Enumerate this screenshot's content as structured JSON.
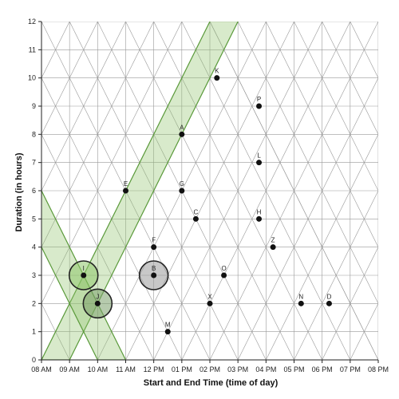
{
  "chart_data": {
    "type": "scatter",
    "xlabel": "Start and End Time (time of day)",
    "ylabel": "Duration (in hours)",
    "x_ticks": [
      "08 AM",
      "09 AM",
      "10 AM",
      "11 AM",
      "12 PM",
      "01 PM",
      "02 PM",
      "03 PM",
      "04 PM",
      "05 PM",
      "06 PM",
      "07 PM",
      "08 PM"
    ],
    "y_ticks": [
      "0",
      "1",
      "2",
      "3",
      "4",
      "5",
      "6",
      "7",
      "8",
      "9",
      "10",
      "11",
      "12"
    ],
    "xlim_hours": [
      8,
      20
    ],
    "ylim": [
      0,
      12
    ],
    "grid": "triangular",
    "points": [
      {
        "label": "K",
        "midpoint": 14.25,
        "duration": 10.0
      },
      {
        "label": "P",
        "midpoint": 15.75,
        "duration": 9.0
      },
      {
        "label": "A",
        "midpoint": 13.0,
        "duration": 8.0
      },
      {
        "label": "L",
        "midpoint": 15.75,
        "duration": 7.0
      },
      {
        "label": "E",
        "midpoint": 11.0,
        "duration": 6.0
      },
      {
        "label": "G",
        "midpoint": 13.0,
        "duration": 6.0
      },
      {
        "label": "C",
        "midpoint": 13.5,
        "duration": 5.0
      },
      {
        "label": "H",
        "midpoint": 15.75,
        "duration": 5.0
      },
      {
        "label": "F",
        "midpoint": 12.0,
        "duration": 4.0
      },
      {
        "label": "Z",
        "midpoint": 16.25,
        "duration": 4.0
      },
      {
        "label": "I",
        "midpoint": 9.5,
        "duration": 3.0
      },
      {
        "label": "B",
        "midpoint": 12.0,
        "duration": 3.0
      },
      {
        "label": "O",
        "midpoint": 14.5,
        "duration": 3.0
      },
      {
        "label": "J",
        "midpoint": 10.0,
        "duration": 2.0
      },
      {
        "label": "X",
        "midpoint": 14.0,
        "duration": 2.0
      },
      {
        "label": "N",
        "midpoint": 17.25,
        "duration": 2.0
      },
      {
        "label": "D",
        "midpoint": 18.25,
        "duration": 2.0
      },
      {
        "label": "M",
        "midpoint": 12.5,
        "duration": 1.0
      }
    ],
    "highlighted_points": [
      {
        "label": "I",
        "color": "#8ec46a"
      },
      {
        "label": "J",
        "color": "#7a9e6a"
      },
      {
        "label": "B",
        "color": "#9a9a9a"
      }
    ],
    "bands": [
      {
        "edge_start_time": 8,
        "edge_end_time": 9,
        "direction": "start-after"
      },
      {
        "edge_start_time": 10,
        "edge_end_time": 11,
        "direction": "end-before"
      }
    ],
    "colors": {
      "band_fill": "#8ec46a",
      "band_stroke": "#5a9a3a",
      "grid": "#999999",
      "point": "#111111"
    }
  }
}
